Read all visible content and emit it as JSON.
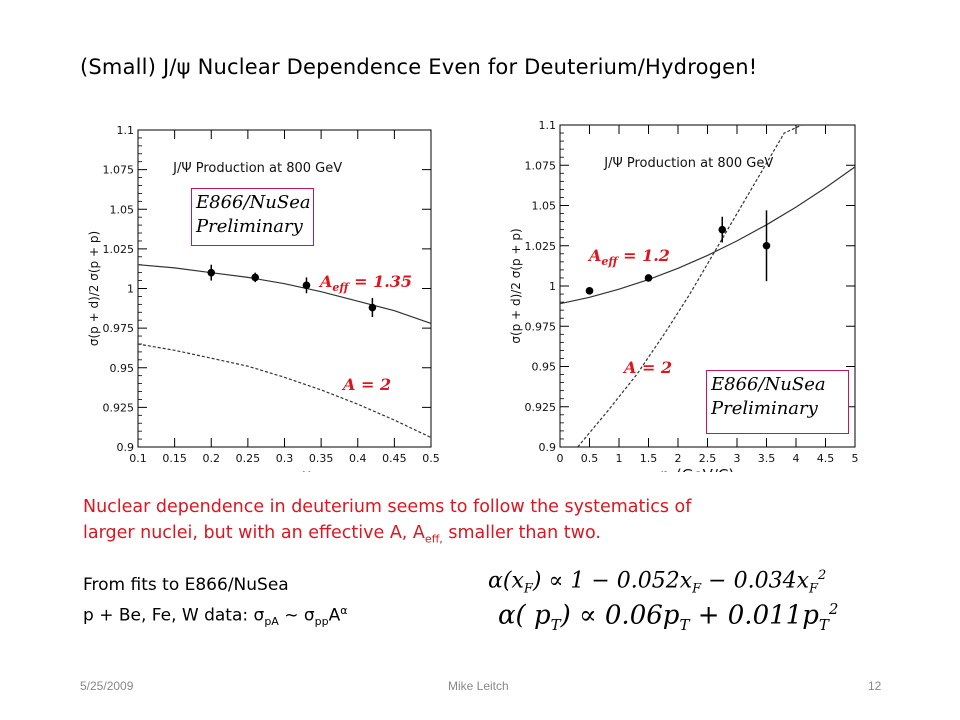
{
  "slide": {
    "title": "(Small) J/ψ Nuclear Dependence Even for Deuterium/Hydrogen!",
    "red_text_1": "Nuclear dependence in deuterium seems to follow the systematics of",
    "red_text_2a": "larger nuclei, but with an effective A, A",
    "red_text_2sub": "eff,",
    "red_text_2b": " smaller than two.",
    "fits_line1": "From fits to E866/NuSea",
    "fits_line2a": "p + Be, Fe, W data: σ",
    "fits_line2sub1": "pA",
    "fits_line2b": " ~ σ",
    "fits_line2sub2": "pp",
    "fits_line2c": "A",
    "fits_line2sup": "α",
    "formula1_a": "α(x",
    "formula1_sub": "F",
    "formula1_b": ") ∝ 1 − 0.052x",
    "formula1_c": " − 0.034x",
    "formula1_sup": "2",
    "formula2_a": "α( p",
    "formula2_sub": "T",
    "formula2_b": ") ∝ 0.06p",
    "formula2_c": " + 0.011p",
    "formula2_sup": "2",
    "footer_date": "5/25/2009",
    "footer_author": "Mike Leitch",
    "footer_page": "12"
  },
  "chart_data": [
    {
      "type": "scatter",
      "title": "J/Ψ Production at 800 GeV",
      "xlabel": "x",
      "xlabel_sub": "F",
      "ylabel": "σ(p + d)/2 σ(p + p)",
      "xlim": [
        0.1,
        0.5
      ],
      "ylim": [
        0.9,
        1.1
      ],
      "xticks": [
        "0.1",
        "0.15",
        "0.2",
        "0.25",
        "0.3",
        "0.35",
        "0.4",
        "0.45",
        "0.5"
      ],
      "yticks": [
        "0.9",
        "0.925",
        "0.95",
        "0.975",
        "1",
        "1.025",
        "1.05",
        "1.075",
        "1.1"
      ],
      "points": [
        {
          "x": 0.2,
          "y": 1.01,
          "err": 0.005
        },
        {
          "x": 0.26,
          "y": 1.007,
          "err": 0.003
        },
        {
          "x": 0.33,
          "y": 1.002,
          "err": 0.005
        },
        {
          "x": 0.42,
          "y": 0.988,
          "err": 0.006
        }
      ],
      "curves": [
        {
          "name": "A eff = 1.35",
          "style": "solid",
          "x": [
            0.1,
            0.15,
            0.2,
            0.25,
            0.3,
            0.35,
            0.4,
            0.45,
            0.5
          ],
          "y": [
            1.015,
            1.013,
            1.01,
            1.007,
            1.003,
            0.998,
            0.992,
            0.986,
            0.978
          ]
        },
        {
          "name": "A = 2",
          "style": "dashed",
          "x": [
            0.1,
            0.15,
            0.2,
            0.25,
            0.3,
            0.35,
            0.4,
            0.45,
            0.5
          ],
          "y": [
            0.965,
            0.961,
            0.956,
            0.951,
            0.944,
            0.936,
            0.927,
            0.917,
            0.906
          ]
        }
      ],
      "box_line1": "E866/NuSea",
      "box_line2": "Preliminary",
      "ann_eff_a": "A",
      "ann_eff_sub": "eff",
      "ann_eff_b": " = 1.35",
      "ann_two": "A = 2"
    },
    {
      "type": "scatter",
      "title": "J/Ψ Production at 800 GeV",
      "xlabel": "p",
      "xlabel_sub": "T",
      "xlabel_rest": "(GeV/C)",
      "ylabel": "σ(p + d)/2 σ(p + p)",
      "xlim": [
        0,
        5
      ],
      "ylim": [
        0.9,
        1.1
      ],
      "xticks": [
        "0",
        "0.5",
        "1",
        "1.5",
        "2",
        "2.5",
        "3",
        "3.5",
        "4",
        "4.5",
        "5"
      ],
      "yticks": [
        "0.9",
        "0.925",
        "0.95",
        "0.975",
        "1",
        "1.025",
        "1.05",
        "1.075",
        "1.1"
      ],
      "points": [
        {
          "x": 0.5,
          "y": 0.997,
          "err": 0.002
        },
        {
          "x": 1.5,
          "y": 1.005,
          "err": 0.002
        },
        {
          "x": 2.75,
          "y": 1.035,
          "err": 0.008
        },
        {
          "x": 3.5,
          "y": 1.025,
          "err": 0.022
        }
      ],
      "curves": [
        {
          "name": "A eff = 1.2",
          "style": "solid",
          "x": [
            0,
            0.5,
            1,
            1.5,
            2,
            2.5,
            3,
            3.5,
            4,
            4.5,
            5
          ],
          "y": [
            0.989,
            0.993,
            0.998,
            1.004,
            1.011,
            1.019,
            1.028,
            1.038,
            1.049,
            1.061,
            1.074
          ]
        },
        {
          "name": "A = 2",
          "style": "dashed",
          "x": [
            0.3,
            0.8,
            1.3,
            1.8,
            2.2,
            2.6,
            3.0,
            3.4,
            3.8,
            4.1
          ],
          "y": [
            0.9,
            0.922,
            0.945,
            0.972,
            0.995,
            1.02,
            1.045,
            1.07,
            1.095,
            1.11
          ]
        }
      ],
      "box_line1": "E866/NuSea",
      "box_line2": "Preliminary",
      "ann_eff_a": "A",
      "ann_eff_sub": "eff",
      "ann_eff_b": " = 1.2",
      "ann_two": "A = 2"
    }
  ]
}
